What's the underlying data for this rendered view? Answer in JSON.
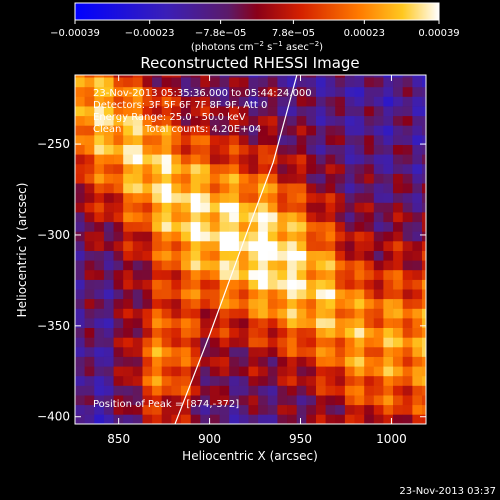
{
  "chart_data": {
    "type": "heatmap",
    "title": "Reconstructed RHESSI Image",
    "xlabel": "Heliocentric X (arcsec)",
    "ylabel": "Heliocentric Y (arcsec)",
    "xlim": [
      826,
      1019
    ],
    "ylim": [
      -404,
      -212
    ],
    "x_ticks": [
      850,
      900,
      950,
      1000
    ],
    "x_tick_labels": [
      "850",
      "900",
      "950",
      "1000"
    ],
    "y_ticks": [
      -250,
      -300,
      -350,
      -400
    ],
    "y_tick_labels": [
      "−250",
      "−300",
      "−350",
      "−400"
    ],
    "colorbar": {
      "range": [
        -0.00039,
        0.00039
      ],
      "ticks": [
        -0.00039,
        -0.00023,
        -7.8e-05,
        7.8e-05,
        0.00023,
        0.00039
      ],
      "tick_labels": [
        "−0.00039",
        "−0.00023",
        "−7.8e−05",
        "7.8e−05",
        "0.00023",
        "0.00039"
      ],
      "unit_main": "(photons cm",
      "unit_exp1": "−2",
      "unit_mid": " s",
      "unit_exp2": "−1",
      "unit_mid2": " asec",
      "unit_exp3": "−2",
      "unit_close": ")"
    },
    "annotations": {
      "time_range": "23-Nov-2013 05:35:36.000 to 05:44:24.000",
      "detectors": "Detectors: 3F 5F 6F 7F 8F 9F, Att 0",
      "energy": "Energy Range: 25.0 - 50.0 keV",
      "method": "Clean",
      "counts": "Total counts: 4.20E+04",
      "peak": "Position of Peak = [874,-372]"
    },
    "peak_position": [
      874,
      -372
    ],
    "limb_curve": {
      "x": [
        881,
        900,
        920,
        935,
        948
      ],
      "y": [
        -404,
        -355,
        -300,
        -260,
        -212
      ]
    },
    "emission_structure": {
      "description_values": "bright diagonal band of positive flux from upper-left toward lower-middle; strongest near (935,-305) and (875,-370)",
      "ridge_x": [
        835,
        860,
        885,
        910,
        935,
        960,
        985
      ],
      "ridge_y": [
        -230,
        -255,
        -285,
        -300,
        -310,
        -330,
        -360
      ],
      "peak_values": [
        0.00028,
        0.00031,
        0.00033,
        0.00035,
        0.00039,
        0.0003,
        0.00024
      ]
    },
    "timestamp": "23-Nov-2013 03:37"
  },
  "colors": {
    "low": "#1a10f5",
    "mid_low": "#6a2aa8",
    "mid": "#8a1020",
    "mid_high": "#e83a08",
    "high": "#ffbc10",
    "max": "#ffffe8"
  }
}
